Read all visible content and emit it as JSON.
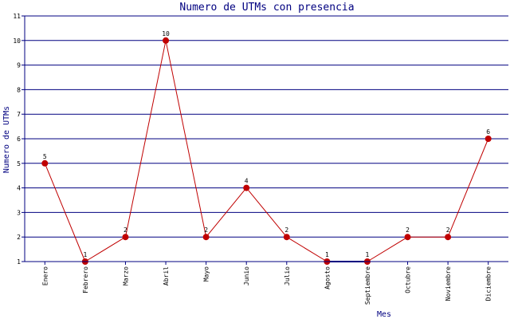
{
  "chart_data": {
    "type": "line",
    "title": "Numero de UTMs con presencia",
    "xlabel": "Mes",
    "ylabel": "Numero de UTMs",
    "categories": [
      "Enero",
      "Febrero",
      "Marzo",
      "Abril",
      "Mayo",
      "Junio",
      "Julio",
      "Agosto",
      "Septiembre",
      "Octubre",
      "Noviembre",
      "Diciembre"
    ],
    "series": [
      {
        "values": [
          5,
          1,
          2,
          10,
          2,
          4,
          2,
          1,
          1,
          2,
          2,
          6
        ]
      }
    ],
    "ylim": [
      1,
      11
    ],
    "yticks": [
      1,
      2,
      3,
      4,
      5,
      6,
      7,
      8,
      9,
      10,
      11
    ],
    "grid": true,
    "data_labels": true,
    "colors": {
      "line": "#c00000",
      "marker": "#c00000",
      "axis": "#000080",
      "grid": "#000080",
      "title": "#000080",
      "low_segment": "#000080"
    }
  }
}
